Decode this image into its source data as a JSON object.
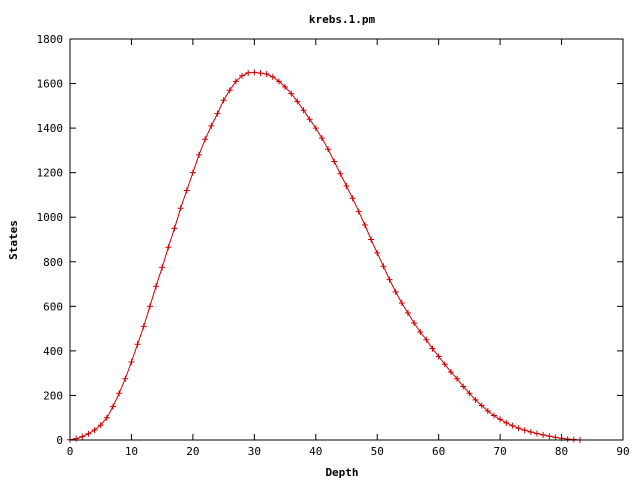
{
  "chart_data": {
    "type": "line",
    "title": "krebs.1.pm",
    "xlabel": "Depth",
    "ylabel": "States",
    "xlim": [
      0,
      90
    ],
    "ylim": [
      0,
      1800
    ],
    "xticks": [
      0,
      10,
      20,
      30,
      40,
      50,
      60,
      70,
      80,
      90
    ],
    "yticks": [
      0,
      200,
      400,
      600,
      800,
      1000,
      1200,
      1400,
      1600,
      1800
    ],
    "grid": false,
    "legend": "none",
    "series": [
      {
        "color": "#cc0000",
        "marker": "plus",
        "x": [
          0,
          1,
          2,
          3,
          4,
          5,
          6,
          7,
          8,
          9,
          10,
          11,
          12,
          13,
          14,
          15,
          16,
          17,
          18,
          19,
          20,
          21,
          22,
          23,
          24,
          25,
          26,
          27,
          28,
          29,
          30,
          31,
          32,
          33,
          34,
          35,
          36,
          37,
          38,
          39,
          40,
          41,
          42,
          43,
          44,
          45,
          46,
          47,
          48,
          49,
          50,
          51,
          52,
          53,
          54,
          55,
          56,
          57,
          58,
          59,
          60,
          61,
          62,
          63,
          64,
          65,
          66,
          67,
          68,
          69,
          70,
          71,
          72,
          73,
          74,
          75,
          76,
          77,
          78,
          79,
          80,
          81,
          82,
          83
        ],
        "y": [
          1,
          6,
          15,
          28,
          45,
          67,
          100,
          150,
          210,
          275,
          350,
          430,
          510,
          600,
          690,
          775,
          865,
          950,
          1040,
          1120,
          1200,
          1280,
          1350,
          1410,
          1465,
          1525,
          1570,
          1610,
          1635,
          1648,
          1650,
          1647,
          1643,
          1630,
          1610,
          1585,
          1555,
          1520,
          1480,
          1440,
          1400,
          1355,
          1305,
          1250,
          1195,
          1140,
          1085,
          1025,
          965,
          900,
          840,
          780,
          720,
          665,
          615,
          570,
          525,
          485,
          450,
          410,
          375,
          340,
          305,
          275,
          240,
          210,
          180,
          155,
          130,
          110,
          93,
          77,
          64,
          53,
          44,
          36,
          29,
          23,
          17,
          12,
          8,
          4,
          2,
          0
        ]
      }
    ]
  }
}
